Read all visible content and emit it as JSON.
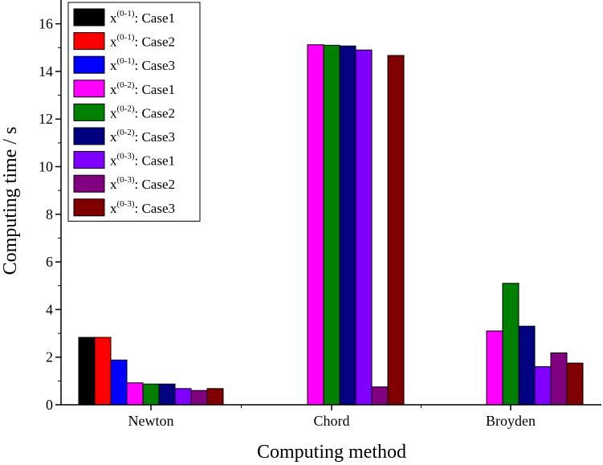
{
  "chart_data": {
    "type": "bar",
    "title": "",
    "xlabel": "Computing method",
    "ylabel": "Computing time / s",
    "categories": [
      "Newton",
      "Chord",
      "Broyden"
    ],
    "ylim": [
      0,
      17
    ],
    "yticks": [
      0,
      2,
      4,
      6,
      8,
      10,
      12,
      14,
      16
    ],
    "legend_position": "top-left",
    "series": [
      {
        "name": "x(0-1): Case1",
        "base": "x",
        "sup": "(0-1)",
        "suffix": ": Case1",
        "color": "#000000",
        "values": [
          2.83,
          0,
          0
        ]
      },
      {
        "name": "x(0-1): Case2",
        "base": "x",
        "sup": "(0-1)",
        "suffix": ": Case2",
        "color": "#ff0000",
        "values": [
          2.83,
          0,
          0
        ]
      },
      {
        "name": "x(0-1): Case3",
        "base": "x",
        "sup": "(0-1)",
        "suffix": ": Case3",
        "color": "#0000ff",
        "values": [
          1.88,
          0,
          0
        ]
      },
      {
        "name": "x(0-2): Case1",
        "base": "x",
        "sup": "(0-2)",
        "suffix": ": Case1",
        "color": "#ff00ff",
        "values": [
          0.92,
          15.12,
          3.1
        ]
      },
      {
        "name": "x(0-2): Case2",
        "base": "x",
        "sup": "(0-2)",
        "suffix": ": Case2",
        "color": "#008000",
        "values": [
          0.87,
          15.1,
          5.1
        ]
      },
      {
        "name": "x(0-2): Case3",
        "base": "x",
        "sup": "(0-2)",
        "suffix": ": Case3",
        "color": "#000080",
        "values": [
          0.87,
          15.07,
          3.3
        ]
      },
      {
        "name": "x(0-3): Case1",
        "base": "x",
        "sup": "(0-3)",
        "suffix": ": Case1",
        "color": "#8000ff",
        "values": [
          0.68,
          14.9,
          1.6
        ]
      },
      {
        "name": "x(0-3): Case2",
        "base": "x",
        "sup": "(0-3)",
        "suffix": ": Case2",
        "color": "#800080",
        "values": [
          0.6,
          0.75,
          2.18
        ]
      },
      {
        "name": "x(0-3): Case3",
        "base": "x",
        "sup": "(0-3)",
        "suffix": ": Case3",
        "color": "#800000",
        "values": [
          0.68,
          14.67,
          1.75
        ]
      }
    ]
  }
}
